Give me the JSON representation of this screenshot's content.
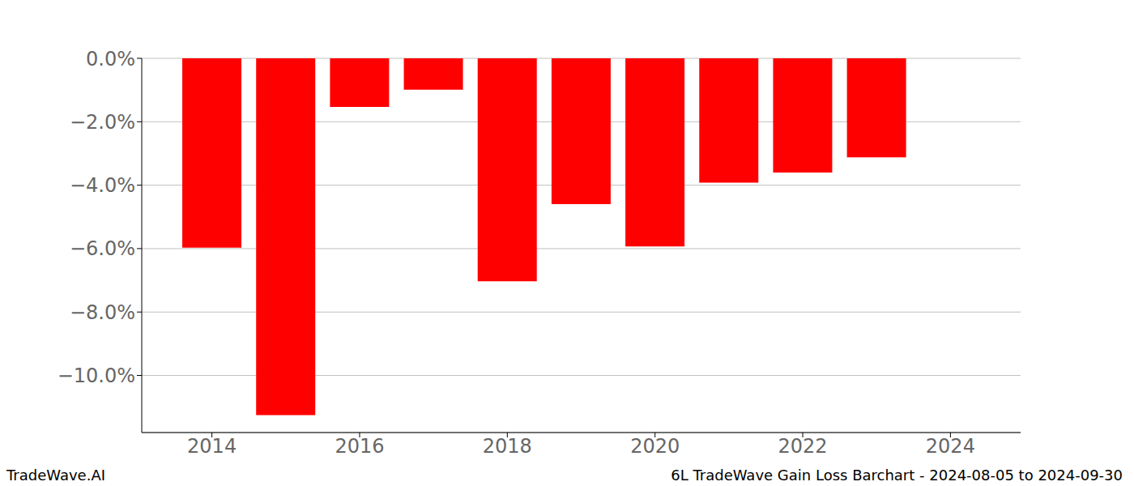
{
  "chart_data": {
    "type": "bar",
    "x": [
      2014,
      2015,
      2016,
      2017,
      2018,
      2019,
      2020,
      2021,
      2022,
      2023
    ],
    "values": [
      -5.97,
      -11.25,
      -1.53,
      -0.99,
      -7.03,
      -4.6,
      -5.93,
      -3.92,
      -3.6,
      -3.12
    ],
    "color": "#ff0000",
    "xlim": [
      2013.05,
      2024.95
    ],
    "xticks": [
      2014,
      2016,
      2018,
      2020,
      2022,
      2024
    ],
    "ylim": [
      -11.8,
      0
    ],
    "yticks": [
      {
        "value": 0,
        "label": "0.0%"
      },
      {
        "value": -2,
        "label": "−2.0%"
      },
      {
        "value": -4,
        "label": "−4.0%"
      },
      {
        "value": -6,
        "label": "−6.0%"
      },
      {
        "value": -8,
        "label": "−8.0%"
      },
      {
        "value": -10,
        "label": "−10.0%"
      }
    ],
    "grid": true,
    "annotations": [
      "TradeWave.AI",
      "6L TradeWave Gain Loss Barchart - 2024-08-05 to 2024-09-30"
    ]
  }
}
